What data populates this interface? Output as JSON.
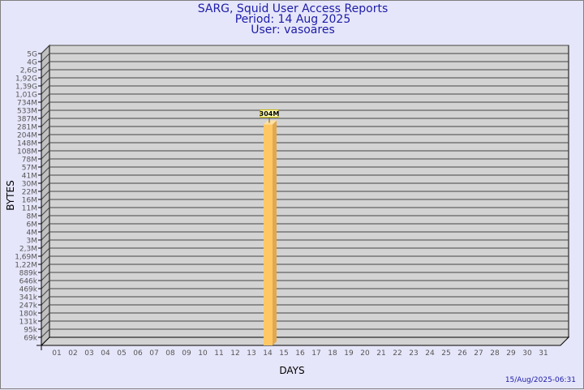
{
  "header": {
    "title": "SARG, Squid User Access Reports",
    "period": "Period: 14 Aug 2025",
    "user": "User: vasoares"
  },
  "footer": {
    "timestamp": "15/Aug/2025-06:31"
  },
  "colors": {
    "background": "#e6e6fa",
    "plot": "#d3d3d3",
    "bar": "#ffc864",
    "title": "#1c1ca8"
  },
  "chart_data": {
    "type": "bar",
    "xlabel": "DAYS",
    "ylabel": "BYTES",
    "yscale": "log",
    "y_tick_labels": [
      "5G",
      "4G",
      "2,6G",
      "1,92G",
      "1,39G",
      "1,01G",
      "734M",
      "533M",
      "387M",
      "281M",
      "204M",
      "148M",
      "108M",
      "78M",
      "57M",
      "41M",
      "30M",
      "22M",
      "16M",
      "11M",
      "8M",
      "6M",
      "4M",
      "3M",
      "2,3M",
      "1,69M",
      "1,22M",
      "889k",
      "646k",
      "469k",
      "341k",
      "247k",
      "180k",
      "131k",
      "95k",
      "69k"
    ],
    "categories": [
      "01",
      "02",
      "03",
      "04",
      "05",
      "06",
      "07",
      "08",
      "09",
      "10",
      "11",
      "12",
      "13",
      "14",
      "15",
      "16",
      "17",
      "18",
      "19",
      "20",
      "21",
      "22",
      "23",
      "24",
      "25",
      "26",
      "27",
      "28",
      "29",
      "30",
      "31"
    ],
    "values": [
      0,
      0,
      0,
      0,
      0,
      0,
      0,
      0,
      0,
      0,
      0,
      0,
      0,
      304000000,
      0,
      0,
      0,
      0,
      0,
      0,
      0,
      0,
      0,
      0,
      0,
      0,
      0,
      0,
      0,
      0,
      0
    ],
    "data_labels": {
      "14": "304M"
    }
  }
}
